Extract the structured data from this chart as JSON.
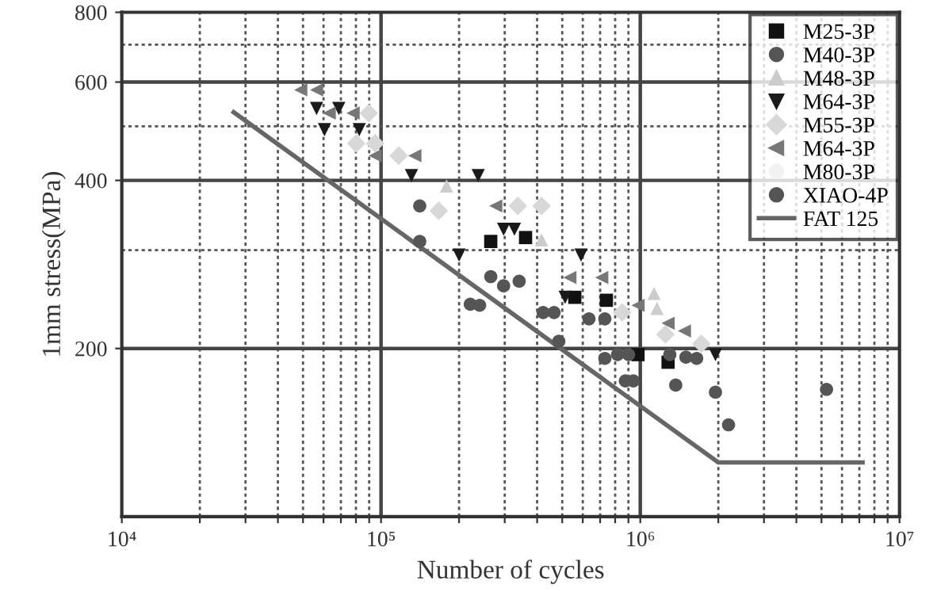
{
  "chart_data": {
    "type": "scatter",
    "xlabel": "Number of cycles",
    "ylabel": "1mm stress(MPa)",
    "log": "xy",
    "xlim": [
      10000,
      10000000
    ],
    "ylim": [
      100,
      800
    ],
    "xticks": [
      {
        "value": 10000,
        "label": "10⁴"
      },
      {
        "value": 20000,
        "label": null
      },
      {
        "value": 30000,
        "label": null
      },
      {
        "value": 40000,
        "label": null
      },
      {
        "value": 50000,
        "label": null
      },
      {
        "value": 60000,
        "label": null
      },
      {
        "value": 70000,
        "label": null
      },
      {
        "value": 80000,
        "label": null
      },
      {
        "value": 90000,
        "label": null
      },
      {
        "value": 100000,
        "label": "10⁵"
      },
      {
        "value": 200000,
        "label": null
      },
      {
        "value": 300000,
        "label": null
      },
      {
        "value": 400000,
        "label": null
      },
      {
        "value": 500000,
        "label": null
      },
      {
        "value": 600000,
        "label": null
      },
      {
        "value": 700000,
        "label": null
      },
      {
        "value": 800000,
        "label": null
      },
      {
        "value": 900000,
        "label": null
      },
      {
        "value": 1000000,
        "label": "10⁶"
      },
      {
        "value": 2000000,
        "label": null
      },
      {
        "value": 3000000,
        "label": null
      },
      {
        "value": 4000000,
        "label": null
      },
      {
        "value": 5000000,
        "label": null
      },
      {
        "value": 6000000,
        "label": null
      },
      {
        "value": 7000000,
        "label": null
      },
      {
        "value": 8000000,
        "label": null
      },
      {
        "value": 9000000,
        "label": null
      },
      {
        "value": 10000000,
        "label": "10⁷"
      }
    ],
    "yticks": [
      200,
      {
        "value": 300,
        "label": null
      },
      400,
      {
        "value": 500,
        "label": null
      },
      600,
      {
        "value": 700,
        "label": null
      },
      800
    ],
    "grid": true,
    "legend": "top right",
    "series": [
      {
        "name": "M25-3P",
        "color": "#111111",
        "marker": "square",
        "x": [
          265000,
          361000,
          559000,
          740000,
          980000,
          1280000
        ],
        "values": [
          311,
          316,
          247,
          244,
          195,
          189
        ]
      },
      {
        "name": "M40-3P",
        "color": "#555555",
        "marker": "circle",
        "x": [
          141000,
          141000,
          265000,
          297000,
          341000,
          221000,
          240000,
          422000,
          465000
        ],
        "values": [
          360,
          311,
          269,
          259,
          264,
          240,
          239,
          232,
          232
        ]
      },
      {
        "name": "M48-3P",
        "color": "#cccccc",
        "marker": "triangle",
        "x": [
          179000,
          416000,
          1130000,
          1160000
        ],
        "values": [
          391,
          313,
          251,
          236
        ]
      },
      {
        "name": "M64-3P",
        "color": "#1a1a1a",
        "marker": "triangle-down",
        "x": [
          56400,
          68700,
          60500,
          82400,
          131000,
          237000,
          297000,
          327000,
          200000,
          591000,
          513000,
          1950000
        ],
        "values": [
          538,
          538,
          493,
          493,
          408,
          408,
          327,
          327,
          294,
          294,
          247,
          195
        ]
      },
      {
        "name": "M55-3P",
        "color": "#d8d8d8",
        "marker": "diamond",
        "x": [
          89700,
          80200,
          94900,
          117000,
          167000,
          337000,
          416000,
          851000,
          1250000,
          1720000
        ],
        "values": [
          528,
          466,
          466,
          443,
          353,
          360,
          360,
          232,
          212,
          204
        ]
      },
      {
        "name": "M64-3P",
        "color": "#777777",
        "marker": "triangle-left",
        "x": [
          49000,
          56400,
          63100,
          78000,
          94900,
          135000,
          277000,
          535000,
          710000,
          980000,
          1280000,
          1480000
        ],
        "values": [
          581,
          581,
          528,
          528,
          443,
          443,
          360,
          268,
          268,
          239,
          222,
          215
        ]
      },
      {
        "name": "M80-3P",
        "color": "#f2f2f2",
        "marker": "circle"
      },
      {
        "name": "XIAO-4P",
        "color": "#555555",
        "marker": "circle",
        "x": [
          485000,
          634000,
          730000,
          730000,
          817000,
          901000,
          1300000,
          1500000,
          1650000,
          876000,
          940000,
          1370000,
          1950000,
          2190000,
          5230000
        ],
        "values": [
          206,
          226,
          226,
          192,
          195,
          195,
          195,
          193,
          192,
          175,
          175,
          172,
          167,
          146,
          169
        ]
      },
      {
        "name": "FAT 125",
        "type": "line",
        "color": "#666666",
        "marker": "none",
        "line_style": "solid",
        "x": [
          27000,
          2000000,
          7200000
        ],
        "values": [
          530,
          125,
          125
        ]
      }
    ]
  }
}
